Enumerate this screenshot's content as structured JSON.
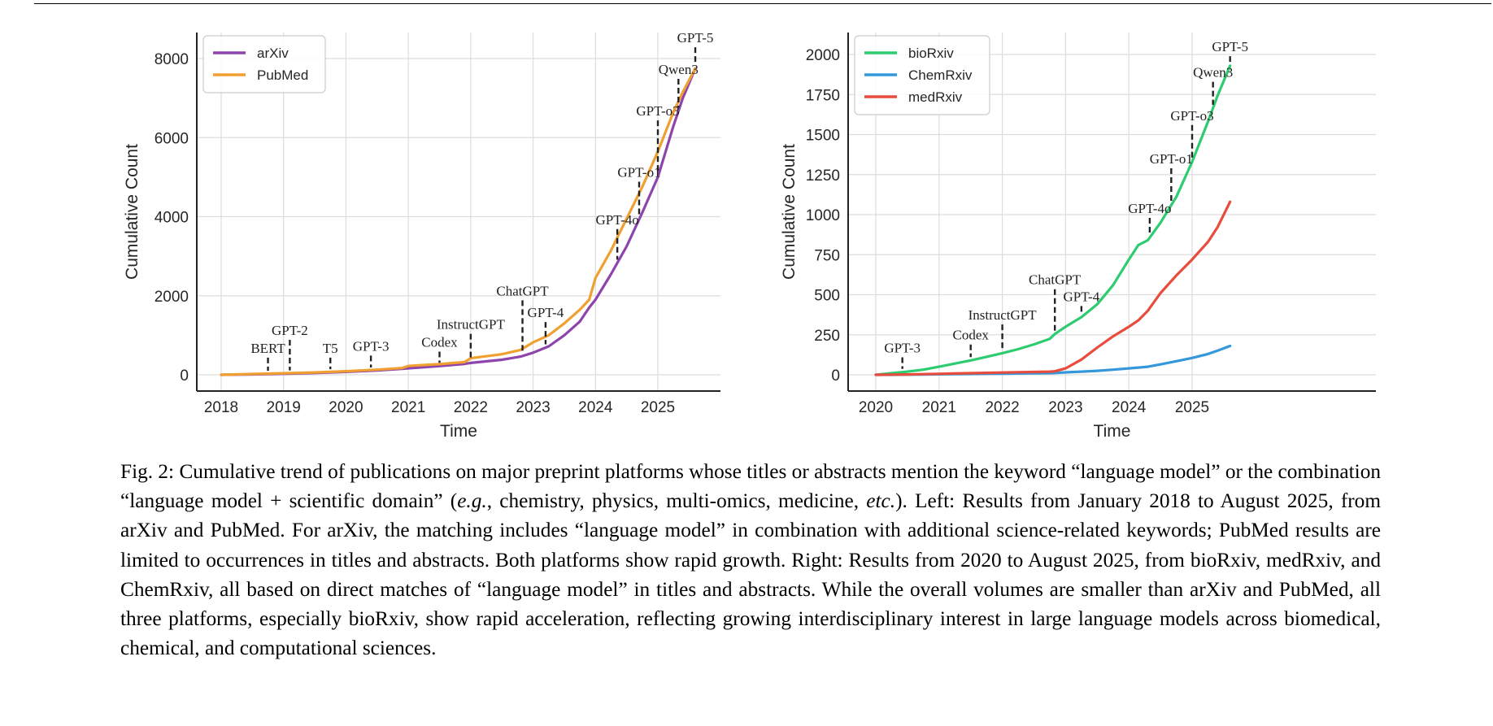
{
  "figure": {
    "label": "Fig. 2:",
    "caption_parts": [
      "Cumulative trend of publications on major preprint platforms whose titles or abstracts mention the keyword “language model” or the combination “language model + scientific domain” (",
      "e.g.",
      ", chemistry, physics, multi-omics, medicine, ",
      "etc.",
      "). Left: Results from January 2018 to August 2025, from arXiv and PubMed. For arXiv, the matching includes “language model” in combination with additional science-related keywords; PubMed results are limited to occurrences in titles and abstracts. Both platforms show rapid growth. Right: Results from 2020 to August 2025, from bioRxiv, medRxiv, and ChemRxiv, all based on direct matches of “language model” in titles and abstracts. While the overall volumes are smaller than arXiv and PubMed, all three platforms, especially bioRxiv, show rapid acceleration, reflecting growing interdisciplinary interest in large language models across biomedical, chemical, and computational sciences."
    ]
  },
  "chart_data": [
    {
      "type": "line",
      "title": "",
      "xlabel": "Time",
      "ylabel": "Cumulative Count",
      "xlim": [
        2017.6,
        2025.95
      ],
      "ylim": [
        -400,
        8700
      ],
      "x_ticks": [
        "2018",
        "2019",
        "2020",
        "2021",
        "2022",
        "2023",
        "2024",
        "2025"
      ],
      "y_ticks": [
        "0",
        "2000",
        "4000",
        "6000",
        "8000"
      ],
      "grid": true,
      "legend_position": "upper left",
      "x": [
        2018.0,
        2018.5,
        2019.0,
        2019.5,
        2020.0,
        2020.5,
        2020.9,
        2021.0,
        2021.5,
        2021.9,
        2022.0,
        2022.5,
        2022.8,
        2023.0,
        2023.25,
        2023.5,
        2023.75,
        2023.9,
        2024.0,
        2024.25,
        2024.5,
        2024.75,
        2025.0,
        2025.25,
        2025.4,
        2025.6
      ],
      "series": [
        {
          "name": "arXiv",
          "color": "#8e44ad",
          "values": [
            0,
            10,
            25,
            45,
            75,
            110,
            150,
            165,
            220,
            275,
            300,
            380,
            460,
            560,
            720,
            1000,
            1350,
            1700,
            1900,
            2550,
            3250,
            4100,
            5000,
            6300,
            7000,
            7750
          ]
        },
        {
          "name": "PubMed",
          "color": "#f0a030",
          "values": [
            0,
            20,
            40,
            60,
            90,
            130,
            170,
            225,
            270,
            320,
            420,
            520,
            630,
            820,
            1000,
            1300,
            1650,
            1900,
            2450,
            3150,
            3950,
            4750,
            5650,
            6650,
            7150,
            7750
          ]
        }
      ],
      "annotations": [
        {
          "label": "BERT",
          "x": 2018.75,
          "y_label": 600
        },
        {
          "label": "GPT-2",
          "x": 2019.1,
          "y_label": 1050
        },
        {
          "label": "T5",
          "x": 2019.75,
          "y_label": 600
        },
        {
          "label": "GPT-3",
          "x": 2020.4,
          "y_label": 650
        },
        {
          "label": "Codex",
          "x": 2021.5,
          "y_label": 750
        },
        {
          "label": "InstructGPT",
          "x": 2022.0,
          "y_label": 1200
        },
        {
          "label": "ChatGPT",
          "x": 2022.83,
          "y_label": 2050
        },
        {
          "label": "GPT-4",
          "x": 2023.2,
          "y_label": 1500
        },
        {
          "label": "GPT-4o",
          "x": 2024.35,
          "y_label": 3850
        },
        {
          "label": "GPT-o1",
          "x": 2024.7,
          "y_label": 5050
        },
        {
          "label": "GPT-o3",
          "x": 2025.0,
          "y_label": 6600
        },
        {
          "label": "Qwen3",
          "x": 2025.33,
          "y_label": 7650
        },
        {
          "label": "GPT-5",
          "x": 2025.6,
          "y_label": 8450
        }
      ]
    },
    {
      "type": "line",
      "title": "",
      "xlabel": "Time",
      "ylabel": "Cumulative Count",
      "xlim": [
        2019.55,
        2025.95
      ],
      "ylim": [
        -100,
        2150
      ],
      "x_ticks": [
        "2020",
        "2021",
        "2022",
        "2023",
        "2024",
        "2025"
      ],
      "y_ticks": [
        "0",
        "250",
        "500",
        "750",
        "1000",
        "1250",
        "1500",
        "1750",
        "2000"
      ],
      "grid": true,
      "legend_position": "upper left",
      "x": [
        2020.0,
        2020.25,
        2020.5,
        2020.75,
        2021.0,
        2021.25,
        2021.5,
        2021.75,
        2022.0,
        2022.25,
        2022.5,
        2022.75,
        2022.83,
        2023.0,
        2023.25,
        2023.5,
        2023.75,
        2024.0,
        2024.15,
        2024.3,
        2024.5,
        2024.75,
        2025.0,
        2025.25,
        2025.4,
        2025.6
      ],
      "series": [
        {
          "name": "bioRxiv",
          "color": "#2ecc71",
          "values": [
            0,
            10,
            20,
            32,
            50,
            70,
            90,
            112,
            135,
            160,
            190,
            225,
            255,
            300,
            360,
            440,
            560,
            720,
            810,
            840,
            950,
            1110,
            1330,
            1580,
            1740,
            1930
          ]
        },
        {
          "name": "ChemRxiv",
          "color": "#3498db",
          "values": [
            0,
            0,
            1,
            2,
            3,
            4,
            5,
            6,
            7,
            8,
            9,
            10,
            11,
            15,
            20,
            25,
            32,
            40,
            45,
            50,
            65,
            85,
            105,
            130,
            150,
            180
          ]
        },
        {
          "name": "medRxiv",
          "color": "#e74c3c",
          "values": [
            0,
            1,
            2,
            4,
            6,
            8,
            10,
            12,
            14,
            16,
            18,
            20,
            22,
            40,
            95,
            170,
            240,
            300,
            340,
            400,
            510,
            620,
            720,
            830,
            920,
            1080
          ]
        }
      ],
      "annotations": [
        {
          "label": "GPT-3",
          "x": 2020.42,
          "y_label": 150
        },
        {
          "label": "Codex",
          "x": 2021.5,
          "y_label": 230
        },
        {
          "label": "InstructGPT",
          "x": 2022.0,
          "y_label": 355
        },
        {
          "label": "ChatGPT",
          "x": 2022.83,
          "y_label": 575
        },
        {
          "label": "GPT-4",
          "x": 2023.25,
          "y_label": 470
        },
        {
          "label": "GPT-4o",
          "x": 2024.33,
          "y_label": 1020
        },
        {
          "label": "GPT-o1",
          "x": 2024.67,
          "y_label": 1330
        },
        {
          "label": "GPT-o3",
          "x": 2025.0,
          "y_label": 1600
        },
        {
          "label": "Qwen3",
          "x": 2025.33,
          "y_label": 1870
        },
        {
          "label": "GPT-5",
          "x": 2025.6,
          "y_label": 2030
        }
      ]
    }
  ]
}
